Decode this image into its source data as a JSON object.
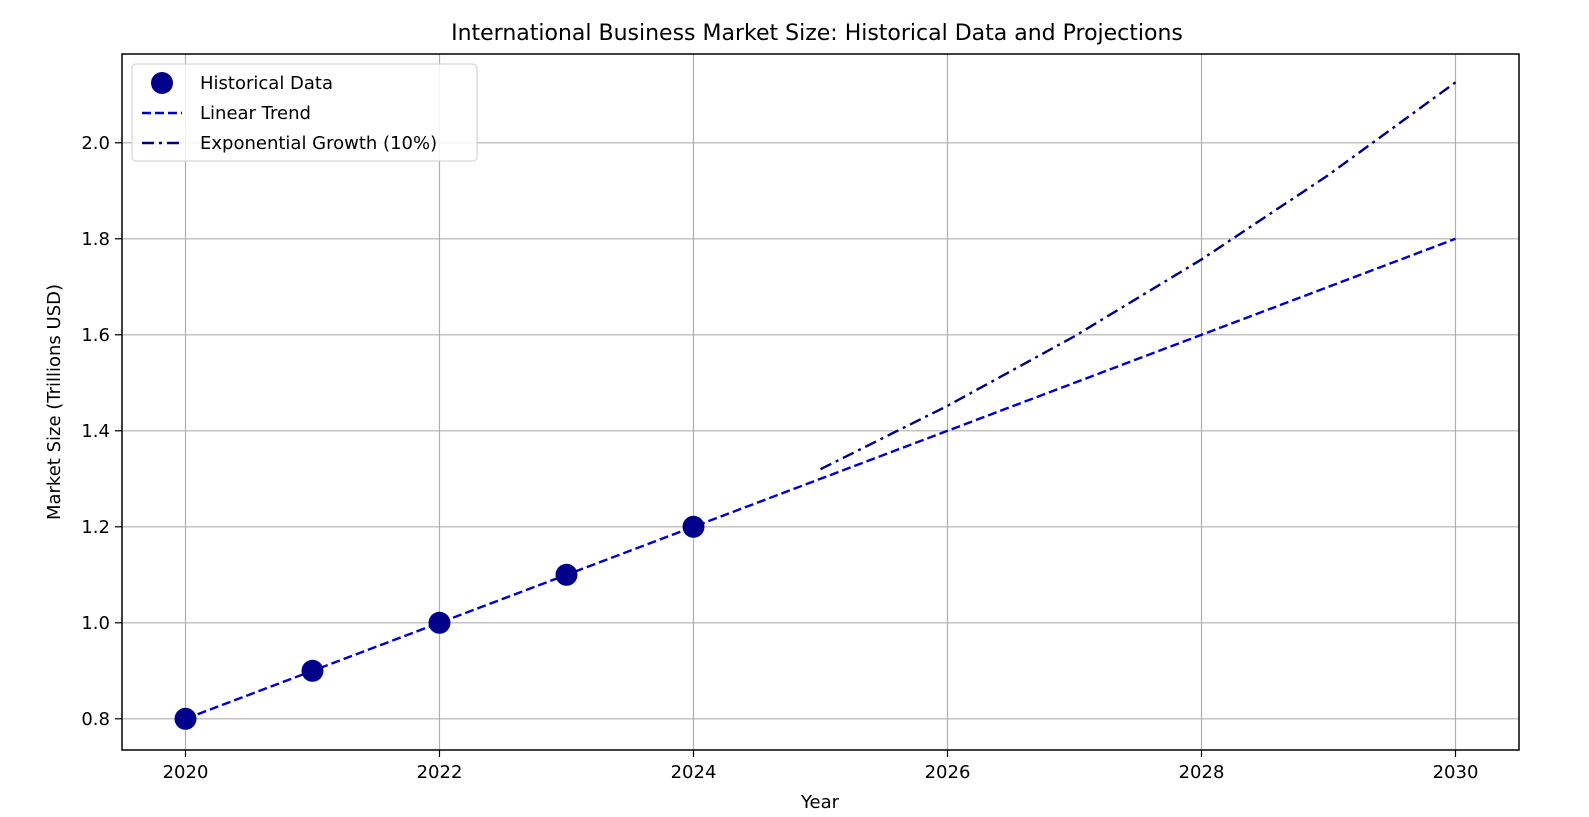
{
  "chart_data": {
    "type": "line",
    "title": "International Business Market Size: Historical Data and Projections",
    "xlabel": "Year",
    "ylabel": "Market Size (Trillions USD)",
    "xlim": [
      2019.5,
      2030.5
    ],
    "ylim": [
      0.735,
      2.185
    ],
    "x_ticks": [
      2020,
      2022,
      2024,
      2026,
      2028,
      2030
    ],
    "x_tick_labels": [
      "2020",
      "2022",
      "2024",
      "2026",
      "2028",
      "2030"
    ],
    "y_ticks": [
      0.8,
      1.0,
      1.2,
      1.4,
      1.6,
      1.8,
      2.0
    ],
    "y_tick_labels": [
      "0.8",
      "1.0",
      "1.2",
      "1.4",
      "1.6",
      "1.8",
      "2.0"
    ],
    "grid": true,
    "legend_position": "top-left",
    "series": [
      {
        "name": "Historical Data",
        "kind": "scatter",
        "color": "#00008b",
        "x": [
          2020,
          2021,
          2022,
          2023,
          2024
        ],
        "y": [
          0.8,
          0.9,
          1.0,
          1.1,
          1.2
        ]
      },
      {
        "name": "Linear Trend",
        "kind": "line",
        "style": "dashed",
        "color": "#0000cd",
        "x": [
          2020,
          2030
        ],
        "y": [
          0.8,
          1.8
        ]
      },
      {
        "name": "Exponential Growth (10%)",
        "kind": "line",
        "style": "dashdot",
        "color": "#000080",
        "x": [
          2025,
          2026,
          2027,
          2028,
          2029,
          2030
        ],
        "y": [
          1.32,
          1.452,
          1.597,
          1.757,
          1.933,
          2.126
        ]
      }
    ]
  }
}
